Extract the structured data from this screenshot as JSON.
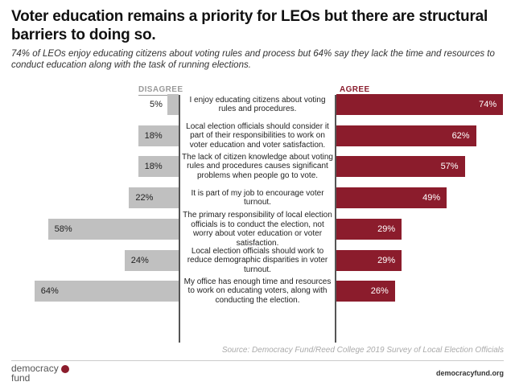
{
  "title": "Voter education remains a priority for LEOs but there are structural barriers to doing so.",
  "subtitle": "74% of LEOs enjoy educating citizens about voting rules and process but 64% say they lack the time and resources to conduct education along with the task of running elections.",
  "source": "Source: Democracy Fund/Reed College 2019 Survey of Local Election Officials",
  "logo": {
    "line1": "democracy",
    "line2": "fund"
  },
  "website": "democracyfund.org",
  "colors": {
    "agree": "#8b1c2c",
    "disagree": "#c0c0c0"
  },
  "chart_data": {
    "type": "bar",
    "orientation": "horizontal-diverging",
    "categories": [
      "I enjoy educating citizens about voting rules and procedures.",
      "Local election officials should consider it part of their responsibilities to work on voter education and voter satisfaction.",
      "The lack of citizen knowledge about voting rules and procedures causes significant problems when people go to vote.",
      "It is part of my job to encourage voter turnout.",
      "The primary responsibility of local election officials is to conduct the election, not worry about voter education or voter satisfaction.",
      "Local election officials should work to reduce demographic disparities in voter turnout.",
      "My office has enough time and resources to work on educating voters, along with conducting the election."
    ],
    "series": [
      {
        "name": "DISAGREE",
        "values": [
          5,
          18,
          18,
          22,
          58,
          24,
          64
        ]
      },
      {
        "name": "AGREE",
        "values": [
          74,
          62,
          57,
          49,
          29,
          29,
          26
        ]
      }
    ],
    "value_labels": {
      "disagree": [
        "5%",
        "18%",
        "18%",
        "22%",
        "58%",
        "24%",
        "64%"
      ],
      "agree": [
        "74%",
        "62%",
        "57%",
        "49%",
        "29%",
        "29%",
        "26%"
      ]
    },
    "legend": "top",
    "grid": false
  }
}
